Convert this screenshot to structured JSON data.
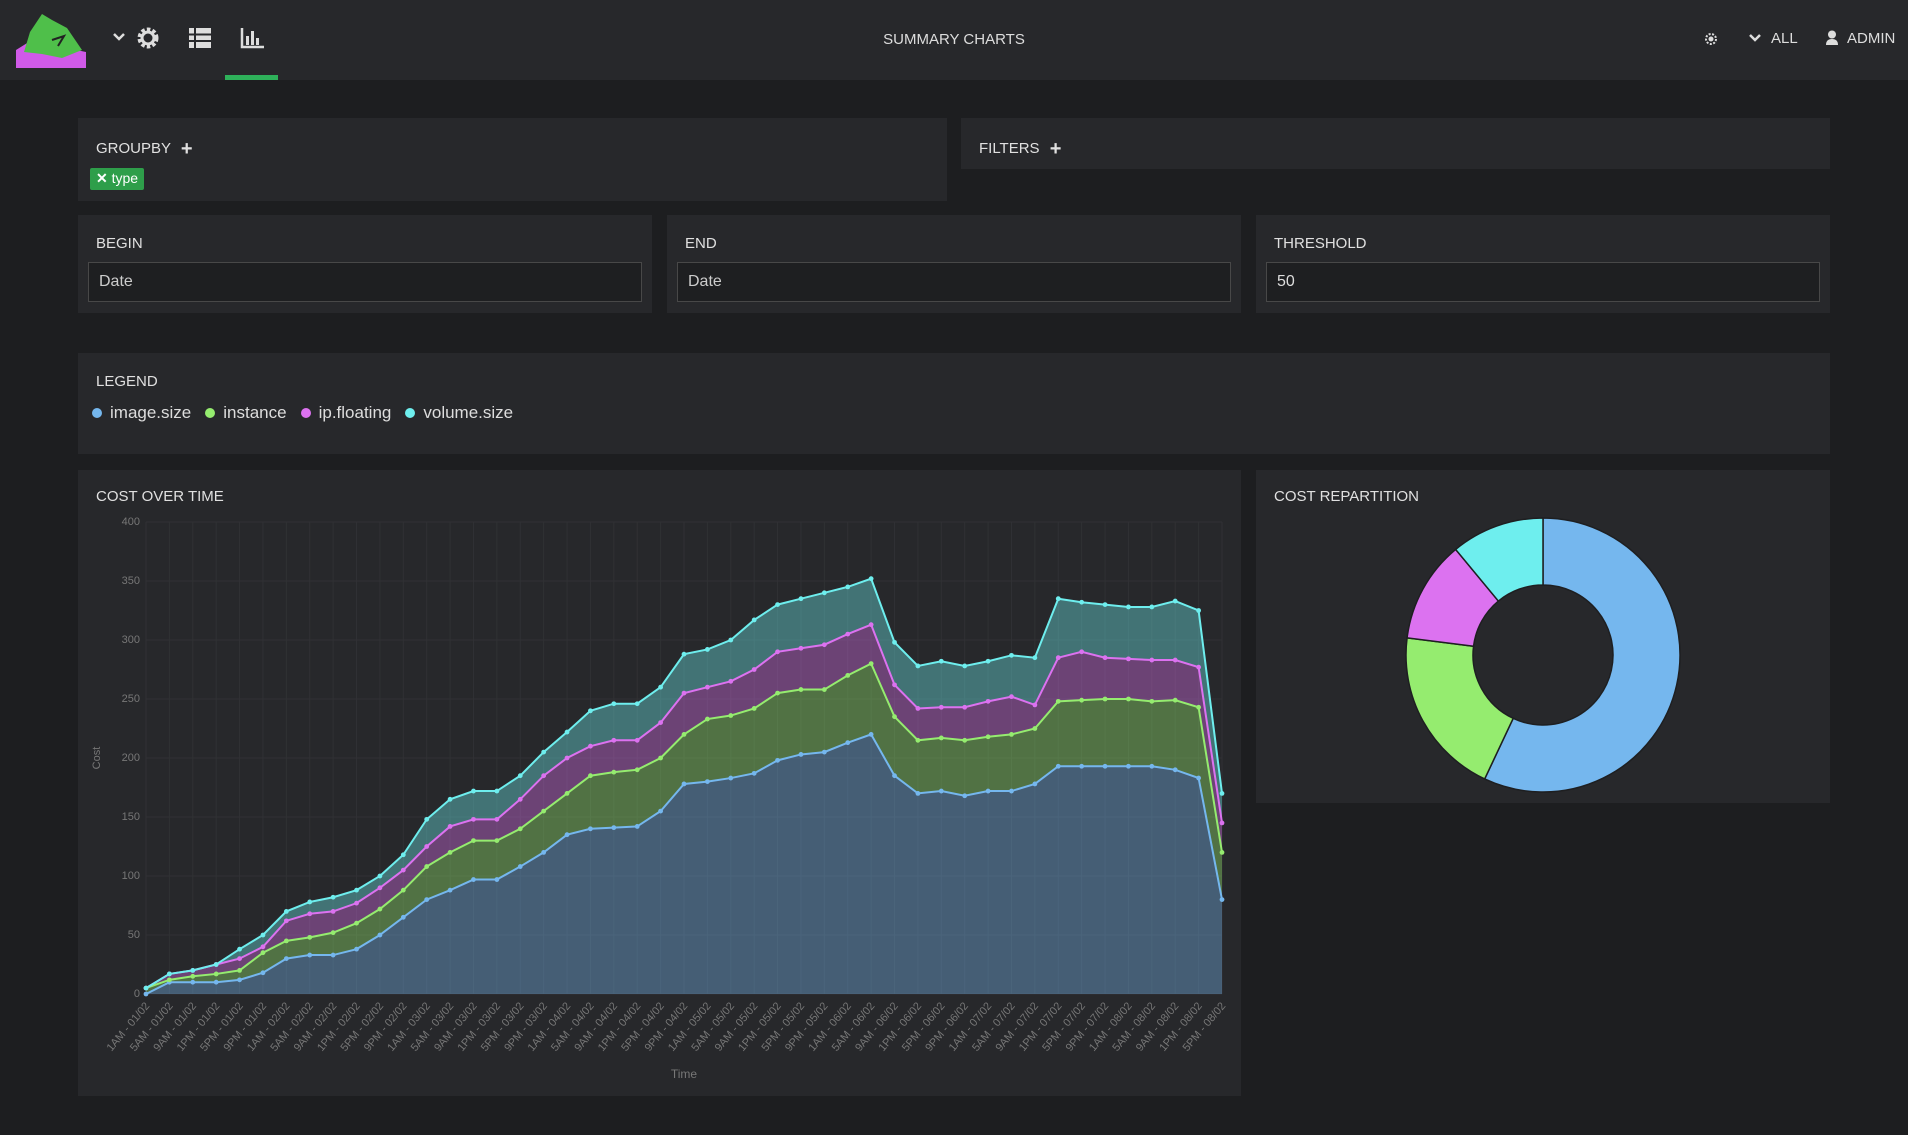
{
  "nav": {
    "title": "SUMMARY CHARTS",
    "scope": "ALL",
    "user": "ADMIN"
  },
  "groupby": {
    "title": "GROUPBY",
    "tag": "type"
  },
  "filters": {
    "title": "FILTERS"
  },
  "begin": {
    "label": "BEGIN",
    "placeholder": "Date"
  },
  "end": {
    "label": "END",
    "placeholder": "Date"
  },
  "threshold": {
    "label": "THRESHOLD",
    "value": "50"
  },
  "legend": {
    "title": "LEGEND"
  },
  "chart_data": [
    {
      "type": "area",
      "stacked": true,
      "title": "COST OVER TIME",
      "xlabel": "Time",
      "ylabel": "Cost",
      "categories": [
        "1AM - 01/02",
        "5AM - 01/02",
        "9AM - 01/02",
        "1PM - 01/02",
        "5PM - 01/02",
        "9PM - 01/02",
        "1AM - 02/02",
        "5AM - 02/02",
        "9AM - 02/02",
        "1PM - 02/02",
        "5PM - 02/02",
        "9PM - 02/02",
        "1AM - 03/02",
        "5AM - 03/02",
        "9AM - 03/02",
        "1PM - 03/02",
        "5PM - 03/02",
        "9PM - 03/02",
        "1AM - 04/02",
        "5AM - 04/02",
        "9AM - 04/02",
        "1PM - 04/02",
        "5PM - 04/02",
        "9PM - 04/02",
        "1AM - 05/02",
        "5AM - 05/02",
        "9AM - 05/02",
        "1PM - 05/02",
        "5PM - 05/02",
        "9PM - 05/02",
        "1AM - 06/02",
        "5AM - 06/02",
        "9AM - 06/02",
        "1PM - 06/02",
        "5PM - 06/02",
        "9PM - 06/02",
        "1AM - 07/02",
        "5AM - 07/02",
        "9AM - 07/02",
        "1PM - 07/02",
        "5PM - 07/02",
        "9PM - 07/02",
        "1AM - 08/02",
        "5AM - 08/02",
        "9AM - 08/02",
        "1PM - 08/02",
        "5PM - 08/02"
      ],
      "series": [
        {
          "name": "image.size",
          "color": "#75b7ee",
          "values": [
            0,
            10,
            10,
            10,
            12,
            18,
            30,
            33,
            33,
            38,
            50,
            65,
            80,
            88,
            97,
            97,
            108,
            120,
            135,
            140,
            141,
            142,
            155,
            178,
            180,
            183,
            187,
            198,
            203,
            205,
            213,
            220,
            185,
            170,
            172,
            168,
            172,
            172,
            178,
            193,
            193,
            193,
            193,
            193,
            190,
            183,
            80
          ]
        },
        {
          "name": "instance",
          "color": "#95ec6f",
          "values": [
            5,
            2,
            5,
            7,
            8,
            17,
            15,
            15,
            19,
            22,
            22,
            23,
            28,
            32,
            33,
            33,
            32,
            35,
            35,
            45,
            47,
            48,
            45,
            42,
            53,
            53,
            55,
            57,
            55,
            53,
            57,
            60,
            50,
            45,
            45,
            47,
            46,
            48,
            47,
            55,
            56,
            57,
            57,
            55,
            59,
            60,
            40
          ]
        },
        {
          "name": "ip.floating",
          "color": "#dc72f0",
          "values": [
            0,
            5,
            5,
            8,
            10,
            5,
            17,
            20,
            18,
            17,
            18,
            17,
            17,
            22,
            18,
            18,
            25,
            30,
            30,
            25,
            27,
            25,
            30,
            35,
            27,
            29,
            33,
            35,
            35,
            38,
            35,
            33,
            27,
            27,
            26,
            28,
            30,
            32,
            20,
            37,
            41,
            35,
            34,
            35,
            34,
            34,
            25
          ]
        },
        {
          "name": "volume.size",
          "color": "#6eeeee",
          "values": [
            0,
            0,
            0,
            0,
            8,
            10,
            8,
            10,
            12,
            11,
            10,
            13,
            23,
            23,
            24,
            24,
            20,
            20,
            22,
            30,
            31,
            31,
            30,
            33,
            32,
            35,
            42,
            40,
            42,
            44,
            40,
            39,
            36,
            36,
            39,
            35,
            34,
            35,
            40,
            50,
            42,
            45,
            44,
            45,
            50,
            48,
            25
          ]
        }
      ],
      "ylim": [
        0,
        400
      ],
      "yticks": [
        0,
        50,
        100,
        150,
        200,
        250,
        300,
        350,
        400
      ],
      "grid": true
    },
    {
      "type": "donut",
      "title": "COST REPARTITION",
      "categories": [
        "image.size",
        "instance",
        "ip.floating",
        "volume.size"
      ],
      "values": [
        57,
        20,
        12,
        11
      ],
      "colors": [
        "#75b7ee",
        "#95ec6f",
        "#dc72f0",
        "#6eeeee"
      ]
    }
  ]
}
